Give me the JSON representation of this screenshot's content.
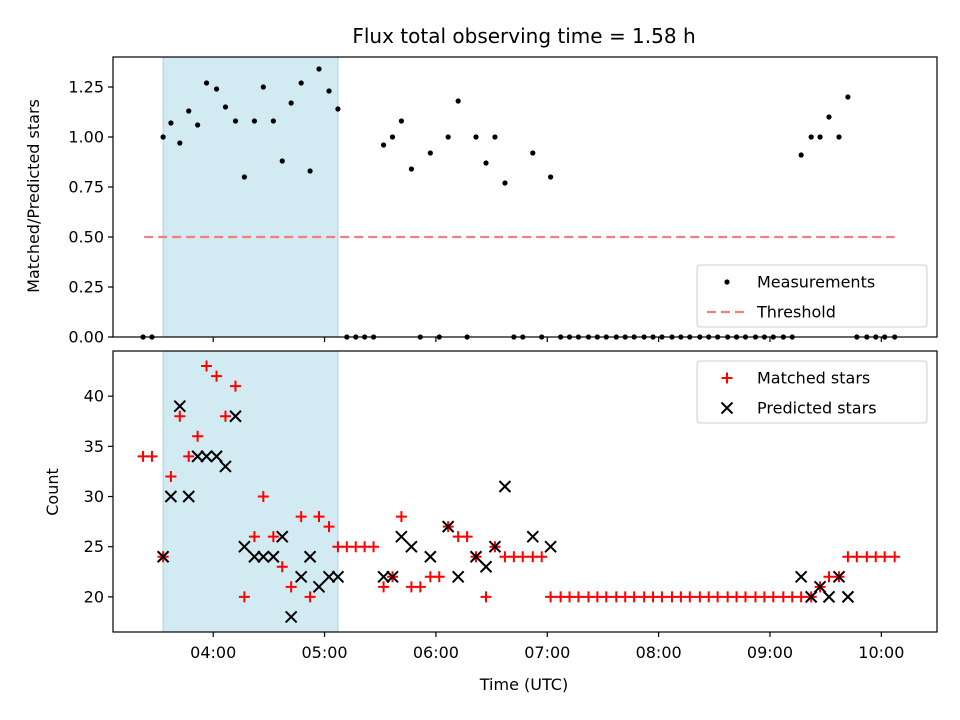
{
  "title": "Flux total observing time = 1.58 h",
  "colors": {
    "measurement": "#000000",
    "threshold": "#f08080",
    "matched": "#ff0000",
    "predicted": "#000000",
    "span_fill": "#add8e6",
    "span_edge": "#a9d3df"
  },
  "chart_data": [
    {
      "type": "scatter",
      "ylabel": "Matched/Predicted stars",
      "ylim": [
        0,
        1.4
      ],
      "y_ticks": [
        0,
        0.25,
        0.5,
        0.75,
        1.0,
        1.25
      ],
      "y_tick_labels": [
        "0.00",
        "0.25",
        "0.50",
        "0.75",
        "1.00",
        "1.25"
      ],
      "xlim": [
        3.1,
        10.5
      ],
      "x_ticks": [
        4,
        5,
        6,
        7,
        8,
        9,
        10
      ],
      "legend": {
        "position": "lower-right",
        "entries": [
          "Measurements",
          "Threshold"
        ]
      },
      "shaded_span": {
        "x_start": 3.55,
        "x_end": 5.12
      },
      "threshold": {
        "value": 0.5,
        "x_start": 3.38,
        "x_end": 10.12
      },
      "series": [
        {
          "name": "Measurements",
          "marker": "dot",
          "points": [
            [
              3.37,
              0
            ],
            [
              3.45,
              0
            ],
            [
              3.55,
              1.0
            ],
            [
              3.62,
              1.07
            ],
            [
              3.7,
              0.97
            ],
            [
              3.78,
              1.13
            ],
            [
              3.86,
              1.06
            ],
            [
              3.94,
              1.27
            ],
            [
              4.03,
              1.24
            ],
            [
              4.11,
              1.15
            ],
            [
              4.2,
              1.08
            ],
            [
              4.28,
              0.8
            ],
            [
              4.37,
              1.08
            ],
            [
              4.45,
              1.25
            ],
            [
              4.54,
              1.08
            ],
            [
              4.62,
              0.88
            ],
            [
              4.7,
              1.17
            ],
            [
              4.79,
              1.27
            ],
            [
              4.87,
              0.83
            ],
            [
              4.95,
              1.34
            ],
            [
              5.04,
              1.23
            ],
            [
              5.12,
              1.14
            ],
            [
              5.2,
              0
            ],
            [
              5.28,
              0
            ],
            [
              5.36,
              0
            ],
            [
              5.44,
              0
            ],
            [
              5.53,
              0.96
            ],
            [
              5.61,
              1.0
            ],
            [
              5.69,
              1.08
            ],
            [
              5.78,
              0.84
            ],
            [
              5.86,
              0
            ],
            [
              5.95,
              0.92
            ],
            [
              6.03,
              0
            ],
            [
              6.11,
              1.0
            ],
            [
              6.2,
              1.18
            ],
            [
              6.28,
              0
            ],
            [
              6.36,
              1.0
            ],
            [
              6.45,
              0.87
            ],
            [
              6.53,
              1.0
            ],
            [
              6.62,
              0.77
            ],
            [
              6.7,
              0
            ],
            [
              6.78,
              0
            ],
            [
              6.87,
              0.92
            ],
            [
              6.95,
              0
            ],
            [
              7.03,
              0.8
            ],
            [
              7.12,
              0
            ],
            [
              7.2,
              0
            ],
            [
              7.28,
              0
            ],
            [
              7.37,
              0
            ],
            [
              7.45,
              0
            ],
            [
              7.53,
              0
            ],
            [
              7.62,
              0
            ],
            [
              7.7,
              0
            ],
            [
              7.78,
              0
            ],
            [
              7.87,
              0
            ],
            [
              7.95,
              0
            ],
            [
              8.03,
              0
            ],
            [
              8.12,
              0
            ],
            [
              8.2,
              0
            ],
            [
              8.28,
              0
            ],
            [
              8.37,
              0
            ],
            [
              8.45,
              0
            ],
            [
              8.53,
              0
            ],
            [
              8.62,
              0
            ],
            [
              8.7,
              0
            ],
            [
              8.78,
              0
            ],
            [
              8.87,
              0
            ],
            [
              8.95,
              0
            ],
            [
              9.03,
              0
            ],
            [
              9.12,
              0
            ],
            [
              9.2,
              0
            ],
            [
              9.28,
              0.91
            ],
            [
              9.37,
              1.0
            ],
            [
              9.45,
              1.0
            ],
            [
              9.53,
              1.1
            ],
            [
              9.62,
              1.0
            ],
            [
              9.7,
              1.2
            ],
            [
              9.78,
              0
            ],
            [
              9.87,
              0
            ],
            [
              9.95,
              0
            ],
            [
              10.03,
              0
            ],
            [
              10.12,
              0
            ]
          ]
        }
      ]
    },
    {
      "type": "scatter",
      "xlabel": "Time (UTC)",
      "ylabel": "Count",
      "ylim": [
        16.5,
        44.5
      ],
      "y_ticks": [
        20,
        25,
        30,
        35,
        40
      ],
      "y_tick_labels": [
        "20",
        "25",
        "30",
        "35",
        "40"
      ],
      "xlim": [
        3.1,
        10.5
      ],
      "x_ticks": [
        4,
        5,
        6,
        7,
        8,
        9,
        10
      ],
      "x_tick_labels": [
        "04:00",
        "05:00",
        "06:00",
        "07:00",
        "08:00",
        "09:00",
        "10:00"
      ],
      "legend": {
        "position": "upper-right",
        "entries": [
          "Matched stars",
          "Predicted stars"
        ]
      },
      "shaded_span": {
        "x_start": 3.55,
        "x_end": 5.12
      },
      "series": [
        {
          "name": "Matched stars",
          "marker": "plus",
          "points": [
            [
              3.37,
              34
            ],
            [
              3.45,
              34
            ],
            [
              3.55,
              24
            ],
            [
              3.62,
              32
            ],
            [
              3.7,
              38
            ],
            [
              3.78,
              34
            ],
            [
              3.86,
              36
            ],
            [
              3.94,
              43
            ],
            [
              4.03,
              42
            ],
            [
              4.11,
              38
            ],
            [
              4.2,
              41
            ],
            [
              4.28,
              20
            ],
            [
              4.37,
              26
            ],
            [
              4.45,
              30
            ],
            [
              4.54,
              26
            ],
            [
              4.62,
              23
            ],
            [
              4.7,
              21
            ],
            [
              4.79,
              28
            ],
            [
              4.87,
              20
            ],
            [
              4.95,
              28
            ],
            [
              5.04,
              27
            ],
            [
              5.12,
              25
            ],
            [
              5.2,
              25
            ],
            [
              5.28,
              25
            ],
            [
              5.36,
              25
            ],
            [
              5.44,
              25
            ],
            [
              5.53,
              21
            ],
            [
              5.61,
              22
            ],
            [
              5.69,
              28
            ],
            [
              5.78,
              21
            ],
            [
              5.86,
              21
            ],
            [
              5.95,
              22
            ],
            [
              6.03,
              22
            ],
            [
              6.11,
              27
            ],
            [
              6.2,
              26
            ],
            [
              6.28,
              26
            ],
            [
              6.36,
              24
            ],
            [
              6.45,
              20
            ],
            [
              6.53,
              25
            ],
            [
              6.62,
              24
            ],
            [
              6.7,
              24
            ],
            [
              6.78,
              24
            ],
            [
              6.87,
              24
            ],
            [
              6.95,
              24
            ],
            [
              7.03,
              20
            ],
            [
              7.12,
              20
            ],
            [
              7.2,
              20
            ],
            [
              7.28,
              20
            ],
            [
              7.37,
              20
            ],
            [
              7.45,
              20
            ],
            [
              7.53,
              20
            ],
            [
              7.62,
              20
            ],
            [
              7.7,
              20
            ],
            [
              7.78,
              20
            ],
            [
              7.87,
              20
            ],
            [
              7.95,
              20
            ],
            [
              8.03,
              20
            ],
            [
              8.12,
              20
            ],
            [
              8.2,
              20
            ],
            [
              8.28,
              20
            ],
            [
              8.37,
              20
            ],
            [
              8.45,
              20
            ],
            [
              8.53,
              20
            ],
            [
              8.62,
              20
            ],
            [
              8.7,
              20
            ],
            [
              8.78,
              20
            ],
            [
              8.87,
              20
            ],
            [
              8.95,
              20
            ],
            [
              9.03,
              20
            ],
            [
              9.12,
              20
            ],
            [
              9.2,
              20
            ],
            [
              9.28,
              20
            ],
            [
              9.37,
              20
            ],
            [
              9.45,
              21
            ],
            [
              9.53,
              22
            ],
            [
              9.62,
              22
            ],
            [
              9.7,
              24
            ],
            [
              9.78,
              24
            ],
            [
              9.87,
              24
            ],
            [
              9.95,
              24
            ],
            [
              10.03,
              24
            ],
            [
              10.12,
              24
            ]
          ]
        },
        {
          "name": "Predicted stars",
          "marker": "x",
          "points": [
            [
              3.55,
              24
            ],
            [
              3.62,
              30
            ],
            [
              3.7,
              39
            ],
            [
              3.78,
              30
            ],
            [
              3.86,
              34
            ],
            [
              3.94,
              34
            ],
            [
              4.03,
              34
            ],
            [
              4.11,
              33
            ],
            [
              4.2,
              38
            ],
            [
              4.28,
              25
            ],
            [
              4.37,
              24
            ],
            [
              4.45,
              24
            ],
            [
              4.54,
              24
            ],
            [
              4.62,
              26
            ],
            [
              4.7,
              18
            ],
            [
              4.79,
              22
            ],
            [
              4.87,
              24
            ],
            [
              4.95,
              21
            ],
            [
              5.04,
              22
            ],
            [
              5.12,
              22
            ],
            [
              5.53,
              22
            ],
            [
              5.61,
              22
            ],
            [
              5.69,
              26
            ],
            [
              5.78,
              25
            ],
            [
              5.95,
              24
            ],
            [
              6.11,
              27
            ],
            [
              6.2,
              22
            ],
            [
              6.36,
              24
            ],
            [
              6.45,
              23
            ],
            [
              6.53,
              25
            ],
            [
              6.62,
              31
            ],
            [
              6.87,
              26
            ],
            [
              7.03,
              25
            ],
            [
              9.28,
              22
            ],
            [
              9.37,
              20
            ],
            [
              9.45,
              21
            ],
            [
              9.53,
              20
            ],
            [
              9.62,
              22
            ],
            [
              9.7,
              20
            ]
          ]
        }
      ]
    }
  ]
}
